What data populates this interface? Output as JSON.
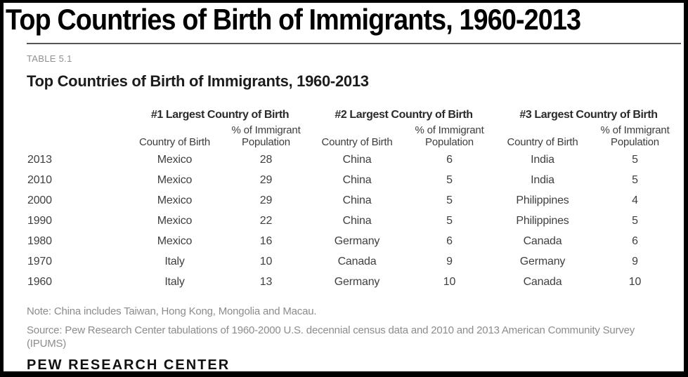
{
  "page_title": "Top Countries of Birth of Immigrants, 1960-2013",
  "panel": {
    "table_label": "TABLE 5.1",
    "heading": "Top Countries of Birth of Immigrants, 1960-2013",
    "note": "Note: China includes Taiwan, Hong Kong, Mongolia and Macau.",
    "source_line1": "Source: Pew Research Center tabulations of 1960-2000 U.S. decennial census data and 2010 and 2013 American Community Survey",
    "source_line2": "(IPUMS)",
    "footer": "PEW RESEARCH CENTER"
  },
  "chart_data": {
    "type": "table",
    "title": "Top Countries of Birth of Immigrants, 1960-2013",
    "group_headers": [
      "#1 Largest Country of Birth",
      "#2 Largest Country of Birth",
      "#3 Largest Country of Birth"
    ],
    "sub_header_country": "Country of Birth",
    "sub_header_pct_line1": "% of Immigrant",
    "sub_header_pct_line2": "Population",
    "rows": [
      {
        "year": "2013",
        "country1": "Mexico",
        "pct1": "28",
        "country2": "China",
        "pct2": "6",
        "country3": "India",
        "pct3": "5"
      },
      {
        "year": "2010",
        "country1": "Mexico",
        "pct1": "29",
        "country2": "China",
        "pct2": "5",
        "country3": "India",
        "pct3": "5"
      },
      {
        "year": "2000",
        "country1": "Mexico",
        "pct1": "29",
        "country2": "China",
        "pct2": "5",
        "country3": "Philippines",
        "pct3": "4"
      },
      {
        "year": "1990",
        "country1": "Mexico",
        "pct1": "22",
        "country2": "China",
        "pct2": "5",
        "country3": "Philippines",
        "pct3": "5"
      },
      {
        "year": "1980",
        "country1": "Mexico",
        "pct1": "16",
        "country2": "Germany",
        "pct2": "6",
        "country3": "Canada",
        "pct3": "6"
      },
      {
        "year": "1970",
        "country1": "Italy",
        "pct1": "10",
        "country2": "Canada",
        "pct2": "9",
        "country3": "Germany",
        "pct3": "9"
      },
      {
        "year": "1960",
        "country1": "Italy",
        "pct1": "13",
        "country2": "Germany",
        "pct2": "10",
        "country3": "Canada",
        "pct3": "10"
      }
    ]
  },
  "colors": {
    "frame_border": "#000000",
    "title_text": "#000000",
    "rule": "#555555",
    "label_gray": "#8f8f8f",
    "heading_text": "#1c1c1c",
    "cell_text": "#404040",
    "note_gray": "#8c8c8c",
    "footer_text": "#111111",
    "background": "#ffffff"
  }
}
